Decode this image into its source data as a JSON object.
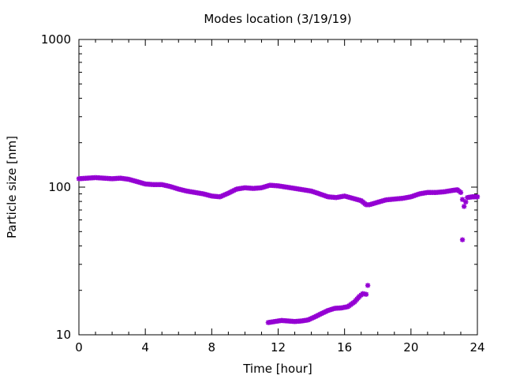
{
  "chart_data": {
    "type": "scatter",
    "title": "Modes location (3/19/19)",
    "xlabel": "Time [hour]",
    "ylabel": "Particle size [nm]",
    "xlim": [
      0,
      24
    ],
    "ylim": [
      10,
      1000
    ],
    "yscale": "log",
    "grid": false,
    "x_ticks": [
      {
        "value": 0,
        "label": "0"
      },
      {
        "value": 4,
        "label": "4"
      },
      {
        "value": 8,
        "label": "8"
      },
      {
        "value": 12,
        "label": "12"
      },
      {
        "value": 16,
        "label": "16"
      },
      {
        "value": 20,
        "label": "20"
      },
      {
        "value": 24,
        "label": "24"
      }
    ],
    "y_ticks": [
      {
        "value": 10,
        "label": "10"
      },
      {
        "value": 100,
        "label": "100"
      },
      {
        "value": 1000,
        "label": "1000"
      }
    ],
    "marker_color": "#9400d3",
    "series": [
      {
        "x": [
          0.0,
          0.5,
          1.0,
          1.5,
          2.0,
          2.5,
          3.0,
          3.5,
          4.0,
          4.5,
          5.0,
          5.5,
          6.0,
          6.5,
          7.0,
          7.5,
          8.0,
          8.5,
          9.0,
          9.5,
          10.0,
          10.5,
          11.0,
          11.5,
          12.0,
          12.5,
          13.0,
          13.5,
          14.0,
          14.5,
          15.0,
          15.5,
          16.0,
          16.5,
          17.0,
          17.3,
          17.5,
          18.0,
          18.5,
          19.0,
          19.5,
          20.0,
          20.5,
          21.0,
          21.5,
          22.0,
          22.5,
          22.8,
          23.0,
          23.2,
          23.4,
          23.7,
          24.0
        ],
        "y": [
          114,
          115,
          116,
          115,
          114,
          115,
          113,
          109,
          105,
          104,
          104,
          101,
          97,
          94,
          92,
          90,
          87,
          86,
          91,
          97,
          99,
          98,
          99,
          103,
          102,
          100,
          98,
          96,
          94,
          90,
          86,
          85,
          87,
          84,
          81,
          76,
          76,
          79,
          82,
          83,
          84,
          86,
          90,
          92,
          92,
          93,
          95,
          96,
          92,
          74,
          85,
          86,
          86
        ]
      },
      {
        "x": [
          11.4,
          11.8,
          12.2,
          12.6,
          13.0,
          13.4,
          13.8,
          14.2,
          14.6,
          15.0,
          15.4,
          15.8,
          16.2,
          16.6,
          16.9,
          17.1,
          17.3,
          17.4
        ],
        "y": [
          12.1,
          12.3,
          12.5,
          12.4,
          12.3,
          12.4,
          12.6,
          13.2,
          13.9,
          14.6,
          15.1,
          15.2,
          15.5,
          16.7,
          18.2,
          19.0,
          18.8,
          21.6
        ]
      },
      {
        "x": [
          23.1
        ],
        "y": [
          44.0
        ]
      }
    ]
  }
}
